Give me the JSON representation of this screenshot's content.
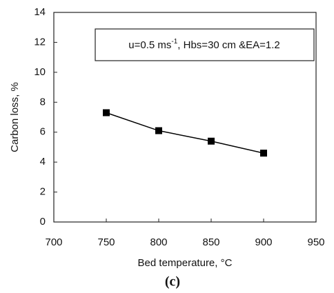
{
  "chart_data": {
    "type": "line",
    "x_label": "Bed temperature, °C",
    "y_label": "Carbon loss, %",
    "caption": "(c)",
    "annotation": [
      "u=0.5 ms",
      "-1",
      ", Hbs=30 cm &EA=1.2"
    ],
    "x": [
      750,
      800,
      850,
      900
    ],
    "series": [
      {
        "name": "Carbon loss",
        "color": "#000000",
        "values": [
          7.3,
          6.1,
          5.4,
          4.6
        ]
      }
    ],
    "xlim": [
      700,
      950
    ],
    "xticks": [
      700,
      750,
      800,
      850,
      900,
      950
    ],
    "ylim": [
      0,
      14
    ],
    "yticks": [
      0,
      2,
      4,
      6,
      8,
      10,
      12,
      14
    ],
    "grid": false
  }
}
